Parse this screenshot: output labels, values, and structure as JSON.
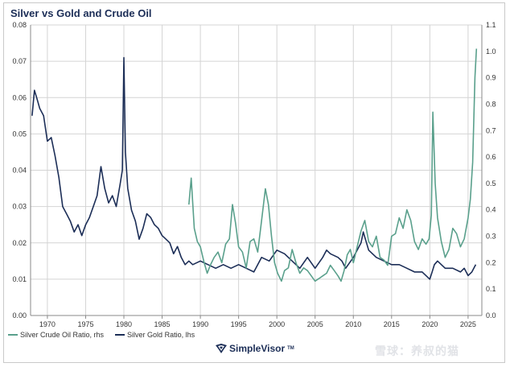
{
  "title": "Silver vs Gold and Crude Oil",
  "legend": {
    "oil_label": "Silver Crude Oil Ratio, rhs",
    "gold_label": "Silver Gold Ratio, lhs"
  },
  "brand": {
    "name": "SimpleVisor",
    "tm": "TM"
  },
  "watermark": "雪球：养叔的猫",
  "colors": {
    "gold_series": "#1c2e57",
    "oil_series": "#5aa08c",
    "title": "#1c2e57"
  },
  "chart_data": {
    "type": "line",
    "title": "Silver vs Gold and Crude Oil",
    "xlim": [
      1967.8,
      2026.8
    ],
    "x_ticks": [
      "1970",
      "1975",
      "1980",
      "1985",
      "1990",
      "1995",
      "2000",
      "2005",
      "2010",
      "2015",
      "2020",
      "2025"
    ],
    "y_left": {
      "lim": [
        0,
        0.08
      ],
      "ticks": [
        "0.00",
        "0.01",
        "0.02",
        "0.03",
        "0.04",
        "0.05",
        "0.06",
        "0.07",
        "0.08"
      ]
    },
    "y_right": {
      "lim": [
        0,
        1.1
      ],
      "ticks": [
        "0.0",
        "0.1",
        "0.2",
        "0.3",
        "0.4",
        "0.5",
        "0.6",
        "0.7",
        "0.8",
        "0.9",
        "1.0",
        "1.1"
      ]
    },
    "grid": true,
    "legend_position": "bottom-left",
    "series": [
      {
        "name": "Silver Gold Ratio, lhs",
        "axis": "left",
        "x": [
          1968.0,
          1968.3,
          1968.6,
          1969.0,
          1969.5,
          1970.0,
          1970.5,
          1971.0,
          1971.5,
          1972.0,
          1972.5,
          1973.0,
          1973.5,
          1974.0,
          1974.5,
          1975.0,
          1975.5,
          1976.0,
          1976.5,
          1977.0,
          1977.5,
          1978.0,
          1978.5,
          1979.0,
          1979.5,
          1979.8,
          1980.0,
          1980.2,
          1980.5,
          1981.0,
          1981.5,
          1982.0,
          1982.5,
          1983.0,
          1983.5,
          1984.0,
          1984.5,
          1985.0,
          1985.5,
          1986.0,
          1986.5,
          1987.0,
          1987.5,
          1988.0,
          1988.5,
          1989.0,
          1990.0,
          1991.0,
          1992.0,
          1993.0,
          1994.0,
          1995.0,
          1996.0,
          1997.0,
          1998.0,
          1999.0,
          2000.0,
          2001.0,
          2002.0,
          2003.0,
          2004.0,
          2005.0,
          2006.0,
          2006.5,
          2007.0,
          2008.0,
          2008.5,
          2009.0,
          2010.0,
          2011.0,
          2011.3,
          2012.0,
          2013.0,
          2014.0,
          2015.0,
          2016.0,
          2017.0,
          2018.0,
          2019.0,
          2020.0,
          2020.3,
          2020.6,
          2021.0,
          2022.0,
          2023.0,
          2024.0,
          2024.5,
          2025.0,
          2025.5,
          2026.0
        ],
        "values": [
          0.055,
          0.062,
          0.06,
          0.057,
          0.055,
          0.048,
          0.049,
          0.044,
          0.038,
          0.03,
          0.028,
          0.026,
          0.023,
          0.025,
          0.022,
          0.025,
          0.027,
          0.03,
          0.033,
          0.041,
          0.035,
          0.031,
          0.033,
          0.03,
          0.036,
          0.04,
          0.071,
          0.045,
          0.035,
          0.029,
          0.026,
          0.021,
          0.024,
          0.028,
          0.027,
          0.025,
          0.024,
          0.022,
          0.021,
          0.02,
          0.017,
          0.019,
          0.016,
          0.014,
          0.015,
          0.014,
          0.015,
          0.014,
          0.013,
          0.014,
          0.013,
          0.014,
          0.013,
          0.012,
          0.016,
          0.015,
          0.018,
          0.017,
          0.015,
          0.013,
          0.016,
          0.013,
          0.016,
          0.018,
          0.017,
          0.016,
          0.015,
          0.013,
          0.016,
          0.02,
          0.023,
          0.018,
          0.016,
          0.015,
          0.014,
          0.014,
          0.013,
          0.012,
          0.012,
          0.01,
          0.012,
          0.014,
          0.015,
          0.013,
          0.013,
          0.012,
          0.013,
          0.011,
          0.012,
          0.014
        ]
      },
      {
        "name": "Silver Crude Oil Ratio, rhs",
        "axis": "right",
        "x": [
          1988.5,
          1988.8,
          1989.2,
          1989.6,
          1990.0,
          1990.5,
          1990.9,
          1991.3,
          1991.8,
          1992.3,
          1992.8,
          1993.3,
          1993.8,
          1994.2,
          1994.6,
          1995.0,
          1995.5,
          1996.0,
          1996.5,
          1997.0,
          1997.5,
          1998.0,
          1998.5,
          1998.9,
          1999.3,
          1999.7,
          2000.1,
          2000.6,
          2001.0,
          2001.5,
          2002.0,
          2002.5,
          2003.0,
          2003.5,
          2004.0,
          2004.5,
          2005.0,
          2005.5,
          2006.0,
          2006.5,
          2007.0,
          2007.5,
          2008.0,
          2008.4,
          2008.8,
          2009.2,
          2009.6,
          2010.0,
          2010.5,
          2011.0,
          2011.5,
          2012.0,
          2012.5,
          2013.0,
          2013.5,
          2014.0,
          2014.5,
          2015.0,
          2015.5,
          2016.0,
          2016.5,
          2017.0,
          2017.5,
          2018.0,
          2018.5,
          2019.0,
          2019.5,
          2019.9,
          2020.2,
          2020.4,
          2020.7,
          2021.0,
          2021.5,
          2022.0,
          2022.5,
          2023.0,
          2023.5,
          2024.0,
          2024.5,
          2025.0,
          2025.3,
          2025.6,
          2025.9,
          2026.1
        ],
        "values": [
          0.42,
          0.52,
          0.33,
          0.28,
          0.26,
          0.2,
          0.16,
          0.19,
          0.22,
          0.24,
          0.2,
          0.27,
          0.29,
          0.42,
          0.35,
          0.26,
          0.24,
          0.18,
          0.28,
          0.29,
          0.24,
          0.36,
          0.48,
          0.42,
          0.3,
          0.2,
          0.16,
          0.13,
          0.17,
          0.18,
          0.25,
          0.2,
          0.16,
          0.18,
          0.17,
          0.15,
          0.13,
          0.14,
          0.15,
          0.16,
          0.19,
          0.17,
          0.15,
          0.13,
          0.17,
          0.23,
          0.25,
          0.2,
          0.26,
          0.32,
          0.36,
          0.28,
          0.26,
          0.3,
          0.22,
          0.21,
          0.19,
          0.3,
          0.31,
          0.37,
          0.33,
          0.4,
          0.36,
          0.28,
          0.25,
          0.29,
          0.27,
          0.29,
          0.38,
          0.77,
          0.5,
          0.37,
          0.28,
          0.22,
          0.25,
          0.33,
          0.31,
          0.26,
          0.29,
          0.37,
          0.44,
          0.58,
          0.9,
          1.01
        ]
      }
    ]
  }
}
